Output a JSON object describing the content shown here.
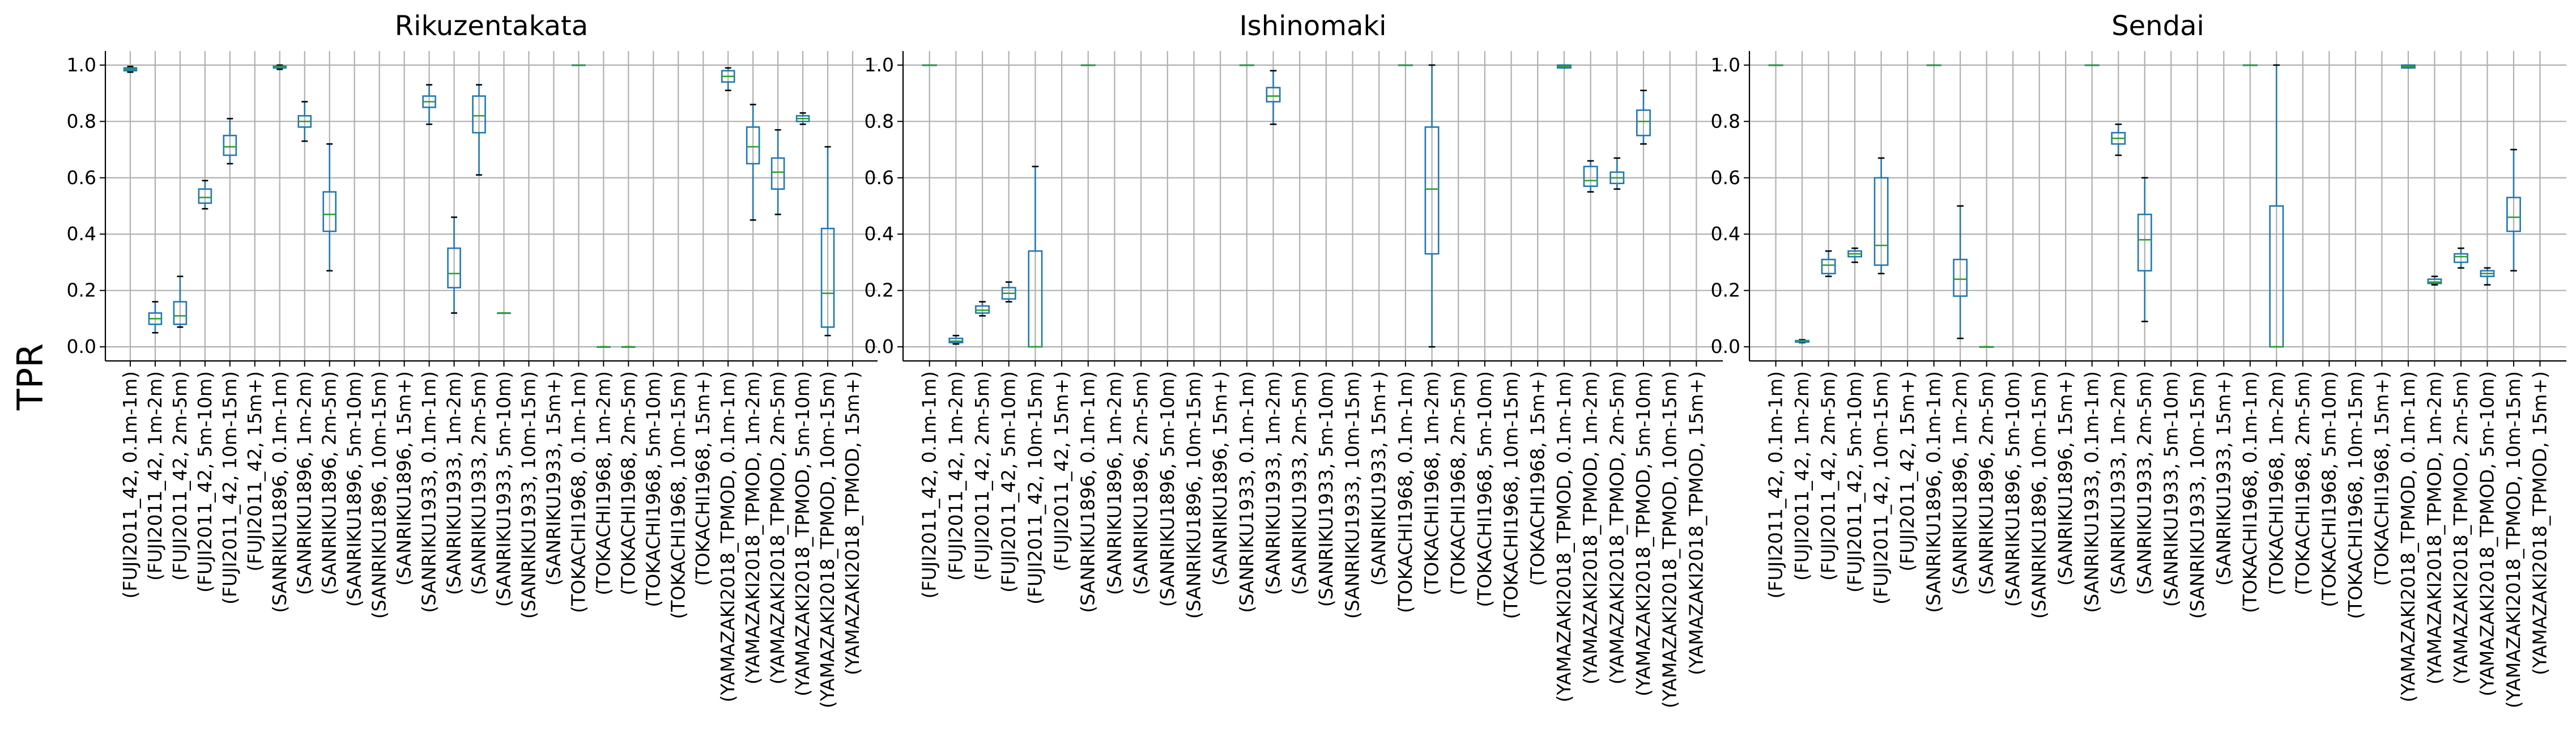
{
  "figure": {
    "ylabel": "TPR",
    "yticks": [
      "0.0",
      "0.2",
      "0.4",
      "0.6",
      "0.8",
      "1.0"
    ],
    "categories": [
      "(FUJI2011_42, 0.1m-1m)",
      "(FUJI2011_42, 1m-2m)",
      "(FUJI2011_42, 2m-5m)",
      "(FUJI2011_42, 5m-10m)",
      "(FUJI2011_42, 10m-15m)",
      "(FUJI2011_42, 15m+)",
      "(SANRIKU1896, 0.1m-1m)",
      "(SANRIKU1896, 1m-2m)",
      "(SANRIKU1896, 2m-5m)",
      "(SANRIKU1896, 5m-10m)",
      "(SANRIKU1896, 10m-15m)",
      "(SANRIKU1896, 15m+)",
      "(SANRIKU1933, 0.1m-1m)",
      "(SANRIKU1933, 1m-2m)",
      "(SANRIKU1933, 2m-5m)",
      "(SANRIKU1933, 5m-10m)",
      "(SANRIKU1933, 10m-15m)",
      "(SANRIKU1933, 15m+)",
      "(TOKACHI1968, 0.1m-1m)",
      "(TOKACHI1968, 1m-2m)",
      "(TOKACHI1968, 2m-5m)",
      "(TOKACHI1968, 5m-10m)",
      "(TOKACHI1968, 10m-15m)",
      "(TOKACHI1968, 15m+)",
      "(YAMAZAKI2018_TPMOD, 0.1m-1m)",
      "(YAMAZAKI2018_TPMOD, 1m-2m)",
      "(YAMAZAKI2018_TPMOD, 2m-5m)",
      "(YAMAZAKI2018_TPMOD, 5m-10m)",
      "(YAMAZAKI2018_TPMOD, 10m-15m)",
      "(YAMAZAKI2018_TPMOD, 15m+)"
    ],
    "colors": {
      "box": "#1f77b4",
      "median": "#2ca02c",
      "grid": "#b0b0b0",
      "axis": "#000000"
    }
  },
  "chart_data": [
    {
      "type": "box",
      "title": "Rikuzentakata",
      "ylim": [
        -0.05,
        1.05
      ],
      "grid": true,
      "boxes": [
        {
          "i": 0,
          "wlo": 0.975,
          "q1": 0.98,
          "med": 0.985,
          "q3": 0.99,
          "whi": 0.995
        },
        {
          "i": 1,
          "wlo": 0.05,
          "q1": 0.08,
          "med": 0.1,
          "q3": 0.12,
          "whi": 0.16
        },
        {
          "i": 2,
          "wlo": 0.07,
          "q1": 0.08,
          "med": 0.11,
          "q3": 0.16,
          "whi": 0.25
        },
        {
          "i": 3,
          "wlo": 0.49,
          "q1": 0.51,
          "med": 0.53,
          "q3": 0.56,
          "whi": 0.59
        },
        {
          "i": 4,
          "wlo": 0.65,
          "q1": 0.68,
          "med": 0.71,
          "q3": 0.75,
          "whi": 0.81
        },
        {
          "i": 6,
          "wlo": 0.985,
          "q1": 0.99,
          "med": 0.993,
          "q3": 0.996,
          "whi": 1.0
        },
        {
          "i": 7,
          "wlo": 0.73,
          "q1": 0.78,
          "med": 0.8,
          "q3": 0.82,
          "whi": 0.87
        },
        {
          "i": 8,
          "wlo": 0.27,
          "q1": 0.41,
          "med": 0.47,
          "q3": 0.55,
          "whi": 0.72
        },
        {
          "i": 12,
          "wlo": 0.79,
          "q1": 0.85,
          "med": 0.87,
          "q3": 0.89,
          "whi": 0.93
        },
        {
          "i": 13,
          "wlo": 0.12,
          "q1": 0.21,
          "med": 0.26,
          "q3": 0.35,
          "whi": 0.46
        },
        {
          "i": 14,
          "wlo": 0.61,
          "q1": 0.76,
          "med": 0.82,
          "q3": 0.89,
          "whi": 0.93
        },
        {
          "i": 15,
          "wlo": 0.12,
          "q1": 0.12,
          "med": 0.12,
          "q3": 0.12,
          "whi": 0.12
        },
        {
          "i": 18,
          "wlo": 1.0,
          "q1": 1.0,
          "med": 1.0,
          "q3": 1.0,
          "whi": 1.0
        },
        {
          "i": 19,
          "wlo": 0.0,
          "q1": 0.0,
          "med": 0.0,
          "q3": 0.0,
          "whi": 0.0
        },
        {
          "i": 20,
          "wlo": 0.0,
          "q1": 0.0,
          "med": 0.0,
          "q3": 0.0,
          "whi": 0.0
        },
        {
          "i": 24,
          "wlo": 0.91,
          "q1": 0.94,
          "med": 0.96,
          "q3": 0.98,
          "whi": 0.99
        },
        {
          "i": 25,
          "wlo": 0.45,
          "q1": 0.65,
          "med": 0.71,
          "q3": 0.78,
          "whi": 0.86
        },
        {
          "i": 26,
          "wlo": 0.47,
          "q1": 0.56,
          "med": 0.62,
          "q3": 0.67,
          "whi": 0.77
        },
        {
          "i": 27,
          "wlo": 0.79,
          "q1": 0.8,
          "med": 0.81,
          "q3": 0.82,
          "whi": 0.83
        },
        {
          "i": 28,
          "wlo": 0.04,
          "q1": 0.07,
          "med": 0.19,
          "q3": 0.42,
          "whi": 0.71
        }
      ]
    },
    {
      "type": "box",
      "title": "Ishinomaki",
      "ylim": [
        -0.05,
        1.05
      ],
      "grid": true,
      "boxes": [
        {
          "i": 0,
          "wlo": 1.0,
          "q1": 1.0,
          "med": 1.0,
          "q3": 1.0,
          "whi": 1.0
        },
        {
          "i": 1,
          "wlo": 0.01,
          "q1": 0.015,
          "med": 0.02,
          "q3": 0.03,
          "whi": 0.04
        },
        {
          "i": 2,
          "wlo": 0.11,
          "q1": 0.12,
          "med": 0.13,
          "q3": 0.145,
          "whi": 0.16
        },
        {
          "i": 3,
          "wlo": 0.16,
          "q1": 0.17,
          "med": 0.19,
          "q3": 0.21,
          "whi": 0.23
        },
        {
          "i": 4,
          "wlo": 0.0,
          "q1": 0.0,
          "med": 0.0,
          "q3": 0.34,
          "whi": 0.64
        },
        {
          "i": 6,
          "wlo": 1.0,
          "q1": 1.0,
          "med": 1.0,
          "q3": 1.0,
          "whi": 1.0
        },
        {
          "i": 12,
          "wlo": 1.0,
          "q1": 1.0,
          "med": 1.0,
          "q3": 1.0,
          "whi": 1.0
        },
        {
          "i": 13,
          "wlo": 0.79,
          "q1": 0.87,
          "med": 0.89,
          "q3": 0.92,
          "whi": 0.98
        },
        {
          "i": 18,
          "wlo": 1.0,
          "q1": 1.0,
          "med": 1.0,
          "q3": 1.0,
          "whi": 1.0
        },
        {
          "i": 19,
          "wlo": 0.0,
          "q1": 0.33,
          "med": 0.56,
          "q3": 0.78,
          "whi": 1.0
        },
        {
          "i": 24,
          "wlo": 0.99,
          "q1": 0.99,
          "med": 0.995,
          "q3": 1.0,
          "whi": 1.0
        },
        {
          "i": 25,
          "wlo": 0.55,
          "q1": 0.57,
          "med": 0.59,
          "q3": 0.64,
          "whi": 0.66
        },
        {
          "i": 26,
          "wlo": 0.56,
          "q1": 0.58,
          "med": 0.6,
          "q3": 0.62,
          "whi": 0.67
        },
        {
          "i": 27,
          "wlo": 0.72,
          "q1": 0.75,
          "med": 0.8,
          "q3": 0.84,
          "whi": 0.91
        }
      ]
    },
    {
      "type": "box",
      "title": "Sendai",
      "ylim": [
        -0.05,
        1.05
      ],
      "grid": true,
      "boxes": [
        {
          "i": 0,
          "wlo": 1.0,
          "q1": 1.0,
          "med": 1.0,
          "q3": 1.0,
          "whi": 1.0
        },
        {
          "i": 1,
          "wlo": 0.015,
          "q1": 0.017,
          "med": 0.02,
          "q3": 0.022,
          "whi": 0.025
        },
        {
          "i": 2,
          "wlo": 0.25,
          "q1": 0.26,
          "med": 0.29,
          "q3": 0.31,
          "whi": 0.34
        },
        {
          "i": 3,
          "wlo": 0.3,
          "q1": 0.32,
          "med": 0.33,
          "q3": 0.34,
          "whi": 0.35
        },
        {
          "i": 4,
          "wlo": 0.26,
          "q1": 0.29,
          "med": 0.36,
          "q3": 0.6,
          "whi": 0.67
        },
        {
          "i": 6,
          "wlo": 1.0,
          "q1": 1.0,
          "med": 1.0,
          "q3": 1.0,
          "whi": 1.0
        },
        {
          "i": 7,
          "wlo": 0.03,
          "q1": 0.18,
          "med": 0.24,
          "q3": 0.31,
          "whi": 0.5
        },
        {
          "i": 8,
          "wlo": 0.0,
          "q1": 0.0,
          "med": 0.0,
          "q3": 0.0,
          "whi": 0.0
        },
        {
          "i": 12,
          "wlo": 1.0,
          "q1": 1.0,
          "med": 1.0,
          "q3": 1.0,
          "whi": 1.0
        },
        {
          "i": 13,
          "wlo": 0.68,
          "q1": 0.72,
          "med": 0.74,
          "q3": 0.76,
          "whi": 0.79
        },
        {
          "i": 14,
          "wlo": 0.09,
          "q1": 0.27,
          "med": 0.38,
          "q3": 0.47,
          "whi": 0.6
        },
        {
          "i": 18,
          "wlo": 1.0,
          "q1": 1.0,
          "med": 1.0,
          "q3": 1.0,
          "whi": 1.0
        },
        {
          "i": 19,
          "wlo": 0.0,
          "q1": 0.0,
          "med": 0.0,
          "q3": 0.5,
          "whi": 1.0
        },
        {
          "i": 24,
          "wlo": 0.99,
          "q1": 0.99,
          "med": 0.995,
          "q3": 1.0,
          "whi": 1.0
        },
        {
          "i": 25,
          "wlo": 0.22,
          "q1": 0.225,
          "med": 0.23,
          "q3": 0.24,
          "whi": 0.25
        },
        {
          "i": 26,
          "wlo": 0.28,
          "q1": 0.3,
          "med": 0.32,
          "q3": 0.33,
          "whi": 0.35
        },
        {
          "i": 27,
          "wlo": 0.22,
          "q1": 0.25,
          "med": 0.26,
          "q3": 0.27,
          "whi": 0.28
        },
        {
          "i": 28,
          "wlo": 0.27,
          "q1": 0.41,
          "med": 0.46,
          "q3": 0.53,
          "whi": 0.7
        }
      ]
    }
  ]
}
